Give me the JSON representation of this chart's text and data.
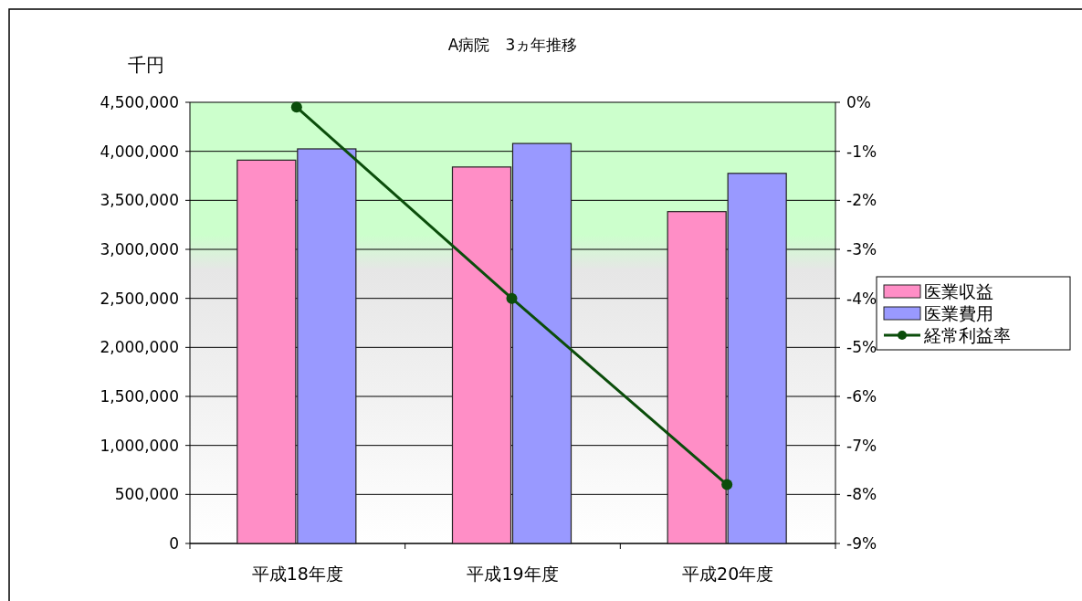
{
  "chart_data": {
    "type": "bar",
    "title": "A病院　3ヵ年推移",
    "ylabel": "千円",
    "categories": [
      "平成18年度",
      "平成19年度",
      "平成20年度"
    ],
    "series": [
      {
        "name": "医業収益",
        "color": "#ff8ec6",
        "values": [
          3910000,
          3840000,
          3385000
        ]
      },
      {
        "name": "医業費用",
        "color": "#9999ff",
        "values": [
          4025000,
          4080000,
          3775000
        ]
      },
      {
        "name": "経常利益率",
        "type": "line",
        "axis": "y2",
        "color": "#0b4d0b",
        "values": [
          -0.1,
          -4.0,
          -7.8
        ]
      }
    ],
    "ylim": [
      0,
      4500000
    ],
    "yticks": [
      {
        "value": 0,
        "label": "0"
      },
      {
        "value": 500000,
        "label": "500,000"
      },
      {
        "value": 1000000,
        "label": "1,000,000"
      },
      {
        "value": 1500000,
        "label": "1,500,000"
      },
      {
        "value": 2000000,
        "label": "2,000,000"
      },
      {
        "value": 2500000,
        "label": "2,500,000"
      },
      {
        "value": 3000000,
        "label": "3,000,000"
      },
      {
        "value": 3500000,
        "label": "3,500,000"
      },
      {
        "value": 4000000,
        "label": "4,000,000"
      },
      {
        "value": 4500000,
        "label": "4,500,000"
      }
    ],
    "y2lim": [
      -9,
      0
    ],
    "y2ticks": [
      {
        "value": 0,
        "label": "0%"
      },
      {
        "value": -1,
        "label": "-1%"
      },
      {
        "value": -2,
        "label": "-2%"
      },
      {
        "value": -3,
        "label": "-3%"
      },
      {
        "value": -4,
        "label": "-4%"
      },
      {
        "value": -5,
        "label": "-5%"
      },
      {
        "value": -6,
        "label": "-6%"
      },
      {
        "value": -7,
        "label": "-7%"
      },
      {
        "value": -8,
        "label": "-8%"
      },
      {
        "value": -9,
        "label": "-9%"
      }
    ],
    "grid": "y",
    "legend": "right",
    "marker": "circle",
    "line_style": "solid"
  }
}
